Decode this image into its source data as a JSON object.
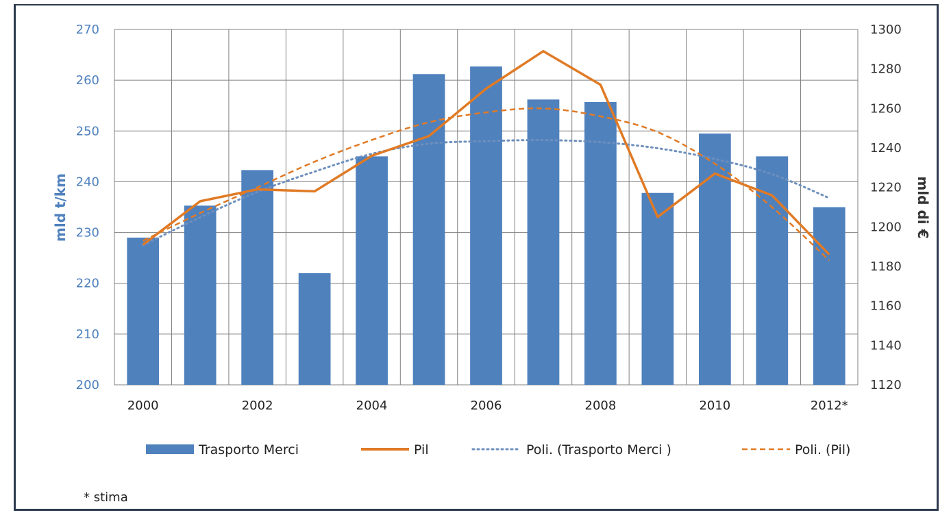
{
  "colors": {
    "bar": "#4f81bd",
    "pil": "#e07a25",
    "axis_left": "#4f81bd",
    "axis_right": "#333333",
    "grid": "#808080"
  },
  "chart_data": {
    "type": "bar",
    "x_ticks": [
      "2000",
      "2002",
      "2004",
      "2006",
      "2008",
      "2010",
      "2012*"
    ],
    "categories": [
      "2000",
      "2001",
      "2002",
      "2003",
      "2004",
      "2005",
      "2006",
      "2007",
      "2008",
      "2009",
      "2010",
      "2011",
      "2012*"
    ],
    "ylabel": "mld t/km",
    "y2label": "mld di €",
    "ylim": [
      200,
      270
    ],
    "y2lim": [
      1120,
      1300
    ],
    "yticks": [
      200,
      210,
      220,
      230,
      240,
      250,
      260,
      270
    ],
    "y2ticks": [
      1120,
      1140,
      1160,
      1180,
      1200,
      1220,
      1240,
      1260,
      1280,
      1300
    ],
    "grid": true,
    "legend_position": "bottom",
    "series": [
      {
        "name": "Trasporto Merci",
        "kind": "bar",
        "axis": "left",
        "values": [
          229,
          235.3,
          242.3,
          222,
          245,
          261.2,
          262.7,
          256.2,
          255.7,
          237.8,
          249.5,
          245,
          235
        ]
      },
      {
        "name": "Pil",
        "kind": "line",
        "axis": "right",
        "values": [
          1191,
          1213,
          1219,
          1218,
          1236,
          1246,
          1270,
          1289,
          1272,
          1205,
          1227,
          1216,
          1186
        ]
      },
      {
        "name": "Poli. (Trasporto Merci )",
        "kind": "trend-dotted",
        "axis": "left",
        "values": [
          227.5,
          233,
          238,
          242,
          245.5,
          247.5,
          248,
          248.2,
          247.8,
          246.6,
          244.5,
          241.5,
          236.8
        ]
      },
      {
        "name": "Poli. (Pil)",
        "kind": "trend-dashed",
        "axis": "right",
        "values": [
          1193,
          1207,
          1220,
          1233,
          1244,
          1253,
          1258,
          1260,
          1256,
          1248,
          1232,
          1210,
          1183
        ]
      }
    ]
  },
  "note": "* stima"
}
